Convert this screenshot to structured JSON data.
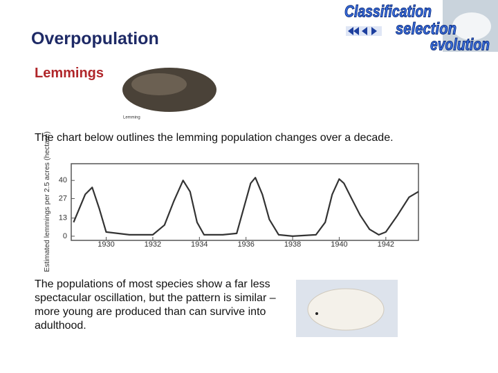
{
  "header": {
    "title": "Overpopulation",
    "subtitle": "Lemmings"
  },
  "logo": {
    "words": [
      "Classification",
      "selection",
      "evolution"
    ]
  },
  "photo_caption": "Lemming",
  "intro": "The chart below outlines the lemming population changes over a decade.",
  "chart_data": {
    "type": "line",
    "ylabel": "Estimated lemmings per 2.5 acres (hectare)",
    "x": [
      1928.6,
      1929.1,
      1929.4,
      1929.7,
      1930.0,
      1931.0,
      1932.0,
      1932.5,
      1932.9,
      1933.3,
      1933.6,
      1933.9,
      1934.2,
      1935.0,
      1935.6,
      1935.9,
      1936.2,
      1936.4,
      1936.7,
      1937.0,
      1937.4,
      1938.0,
      1939.0,
      1939.4,
      1939.7,
      1940.0,
      1940.2,
      1940.5,
      1940.9,
      1941.3,
      1941.7,
      1942.0,
      1942.5,
      1943.0,
      1943.4
    ],
    "values": [
      10,
      30,
      35,
      20,
      3,
      1,
      1,
      8,
      25,
      40,
      32,
      10,
      1,
      1,
      2,
      20,
      38,
      42,
      30,
      12,
      1,
      0,
      1,
      10,
      30,
      41,
      38,
      28,
      15,
      5,
      1,
      3,
      15,
      28,
      32
    ],
    "color": "#333333",
    "xlim": [
      1928.5,
      1943.4
    ],
    "xticks": [
      1930,
      1932,
      1934,
      1936,
      1938,
      1940,
      1942
    ],
    "ylim": [
      -3,
      52
    ],
    "yticks": [
      0,
      13,
      27,
      40
    ]
  },
  "outro": "The populations of most species show a far less spectacular oscillation, but the pattern is similar – more young are produced than can survive into adulthood."
}
